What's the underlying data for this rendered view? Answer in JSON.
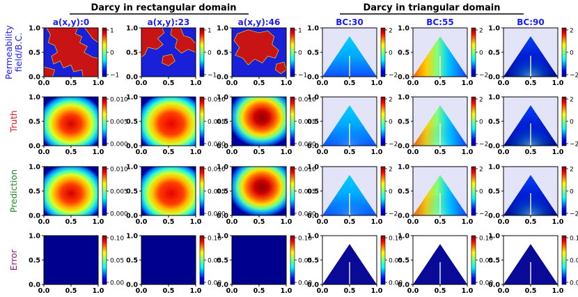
{
  "figure": {
    "group_left_title": "Darcy in rectangular domain",
    "group_right_title": "Darcy in triangular domain"
  },
  "row_labels": [
    {
      "lines": [
        "Permeability",
        "field/B.C."
      ],
      "color": "#1a1aff"
    },
    {
      "lines": [
        "Truth"
      ],
      "color": "#e8161b"
    },
    {
      "lines": [
        "Prediction"
      ],
      "color": "#1f8a1f"
    },
    {
      "lines": [
        "Error"
      ],
      "color": "#8b1a8b"
    }
  ],
  "column_titles": [
    "a(x,y):0",
    "a(x,y):23",
    "a(x,y):46",
    "BC:30",
    "BC:55",
    "BC:90"
  ],
  "title_color": "#1a1aff",
  "axis_ticks": [
    "0.0",
    "0.5",
    "1.0"
  ],
  "chart_data": {
    "type": "heatmap",
    "xlim": [
      0,
      1
    ],
    "ylim": [
      0,
      1
    ],
    "xticks": [
      0.0,
      0.5,
      1.0
    ],
    "yticks": [
      0.0,
      0.5,
      1.0
    ],
    "columns": [
      {
        "title": "a(x,y):0",
        "domain": "rectangle"
      },
      {
        "title": "a(x,y):23",
        "domain": "rectangle"
      },
      {
        "title": "a(x,y):46",
        "domain": "rectangle"
      },
      {
        "title": "BC:30",
        "domain": "triangle"
      },
      {
        "title": "BC:55",
        "domain": "triangle"
      },
      {
        "title": "BC:90",
        "domain": "triangle"
      }
    ],
    "colorbars": [
      [
        {
          "labels": [
            "1",
            "0",
            "−1"
          ]
        },
        {
          "labels": [
            "1",
            "0",
            "−1"
          ]
        },
        {
          "labels": [
            "1",
            "0",
            "−1"
          ]
        },
        {
          "labels": [
            "2",
            "0",
            "−2"
          ]
        },
        {
          "labels": [
            "2",
            "0",
            "−2"
          ]
        },
        {
          "labels": [
            "2",
            "0",
            "−2"
          ]
        }
      ],
      [
        {
          "labels": [
            "0.010",
            "0.005",
            "0.000"
          ]
        },
        {
          "labels": [
            "0.010",
            "0.005",
            "0.000"
          ]
        },
        {
          "labels": [
            "0.010",
            "0.005",
            "0.000"
          ]
        },
        {
          "labels": [
            "2",
            "0",
            "−2"
          ]
        },
        {
          "labels": [
            "2",
            "0",
            "−2"
          ]
        },
        {
          "labels": [
            "2",
            "0",
            "−2"
          ]
        }
      ],
      [
        {
          "labels": [
            "0.010",
            "0.005",
            "0.000"
          ]
        },
        {
          "labels": [
            "0.010",
            "0.005",
            "0.000"
          ]
        },
        {
          "labels": [
            "0.010",
            "0.005",
            "0.000"
          ]
        },
        {
          "labels": [
            "2",
            "0",
            "−2"
          ]
        },
        {
          "labels": [
            "2",
            "0",
            "−2"
          ]
        },
        {
          "labels": [
            "2",
            "0",
            "−2"
          ]
        }
      ],
      [
        {
          "labels": [
            "0.10",
            "0.05",
            "0.00"
          ]
        },
        {
          "labels": [
            "0.10",
            "0.05",
            "0.00"
          ]
        },
        {
          "labels": [
            "0.10",
            "0.05",
            "0.00"
          ]
        },
        {
          "labels": [
            "0.10",
            "0.05",
            "0.00"
          ]
        },
        {
          "labels": [
            "0.10",
            "0.05",
            "0.00"
          ]
        },
        {
          "labels": [
            "0.10",
            "0.05",
            "0.00"
          ]
        }
      ]
    ]
  }
}
